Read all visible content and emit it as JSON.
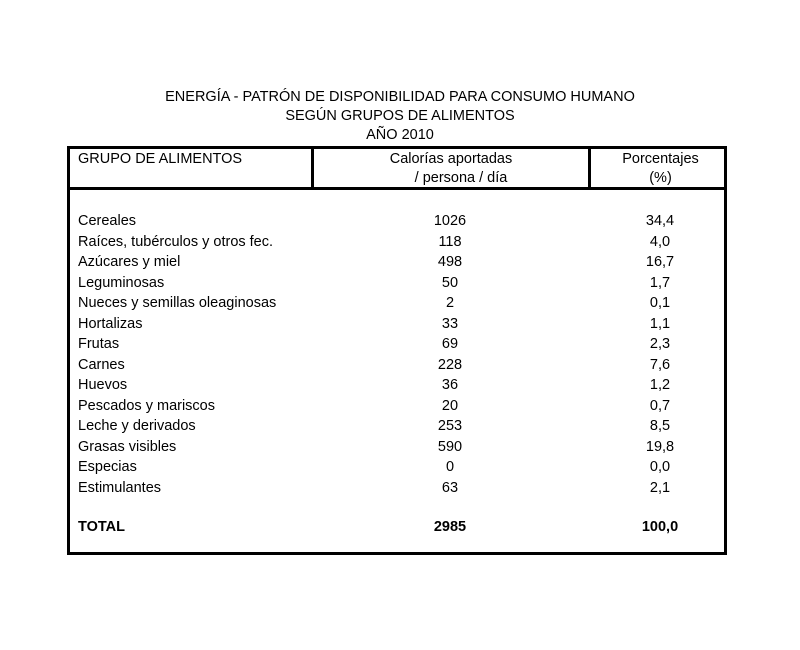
{
  "title": {
    "line1": "ENERGÍA - PATRÓN DE DISPONIBILIDAD PARA CONSUMO HUMANO",
    "line2": "SEGÚN GRUPOS DE ALIMENTOS",
    "line3": "AÑO 2010"
  },
  "table": {
    "headers": {
      "group": "GRUPO DE ALIMENTOS",
      "calories_line1": "Calorías aportadas",
      "calories_line2": "/ persona / día",
      "percent_line1": "Porcentajes",
      "percent_line2": "(%)"
    },
    "rows": [
      {
        "name": "Cereales",
        "calories": "1026",
        "percent": "34,4"
      },
      {
        "name": "Raíces, tubérculos y otros fec.",
        "calories": "118",
        "percent": "4,0"
      },
      {
        "name": "Azúcares y miel",
        "calories": "498",
        "percent": "16,7"
      },
      {
        "name": "Leguminosas",
        "calories": "50",
        "percent": "1,7"
      },
      {
        "name": "Nueces y semillas oleaginosas",
        "calories": "2",
        "percent": "0,1"
      },
      {
        "name": "Hortalizas",
        "calories": "33",
        "percent": "1,1"
      },
      {
        "name": "Frutas",
        "calories": "69",
        "percent": "2,3"
      },
      {
        "name": "Carnes",
        "calories": "228",
        "percent": "7,6"
      },
      {
        "name": "Huevos",
        "calories": "36",
        "percent": "1,2"
      },
      {
        "name": "Pescados y mariscos",
        "calories": "20",
        "percent": "0,7"
      },
      {
        "name": "Leche y derivados",
        "calories": "253",
        "percent": "8,5"
      },
      {
        "name": "Grasas visibles",
        "calories": "590",
        "percent": "19,8"
      },
      {
        "name": "Especias",
        "calories": "0",
        "percent": "0,0"
      },
      {
        "name": "Estimulantes",
        "calories": "63",
        "percent": "2,1"
      }
    ],
    "total": {
      "name": "TOTAL",
      "calories": "2985",
      "percent": "100,0"
    }
  }
}
